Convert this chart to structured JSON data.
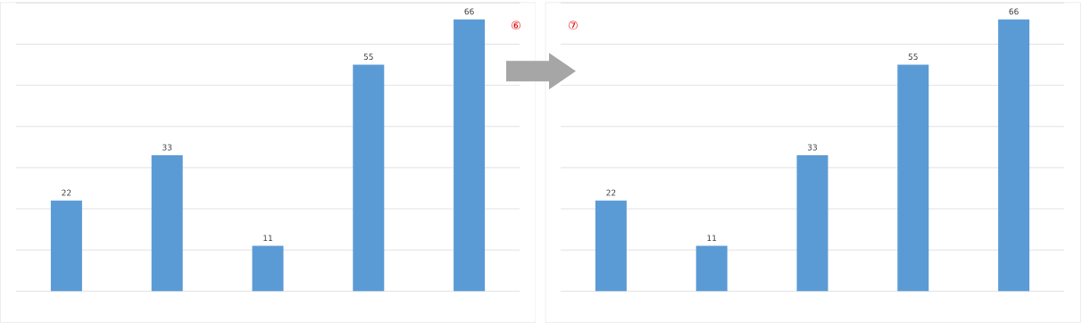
{
  "chart_data": [
    {
      "type": "bar",
      "categories": [
        null,
        null,
        null,
        null,
        null
      ],
      "values": [
        22,
        33,
        11,
        55,
        66
      ],
      "color": "#5b9bd5",
      "ylim": [
        0,
        70
      ],
      "yticks": [
        0,
        10,
        20,
        30,
        40,
        50,
        60,
        70
      ],
      "grid": "y",
      "tick_labels": false,
      "data_labels": true,
      "annotations": [
        "⑥"
      ]
    },
    {
      "type": "bar",
      "categories": [
        null,
        null,
        null,
        null,
        null
      ],
      "values": [
        22,
        11,
        33,
        55,
        66
      ],
      "color": "#5b9bd5",
      "ylim": [
        0,
        70
      ],
      "yticks": [
        0,
        10,
        20,
        30,
        40,
        50,
        60,
        70
      ],
      "grid": "y",
      "tick_labels": false,
      "data_labels": true,
      "annotations": [
        "⑦"
      ]
    }
  ]
}
